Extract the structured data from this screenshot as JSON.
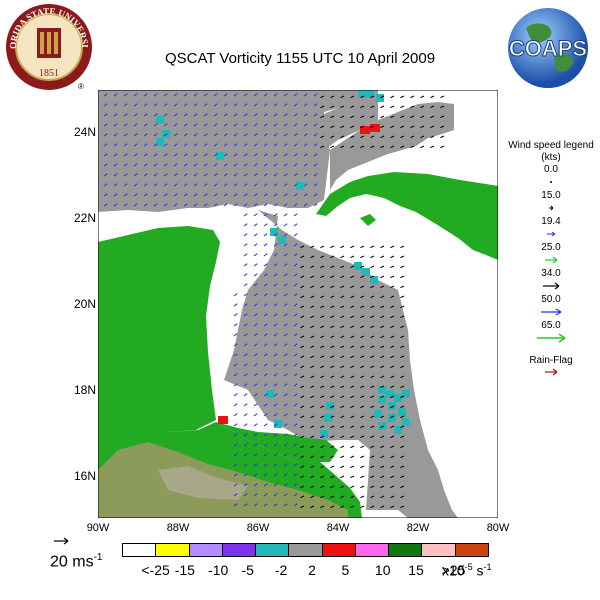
{
  "title": "QSCAT Vorticity 1155 UTC 10 April 2009",
  "logos": {
    "fsu": {
      "text": "FLORIDA STATE UNIVERSITY",
      "year": "1851",
      "mark": "®"
    },
    "coaps": {
      "text": "COAPS"
    }
  },
  "map": {
    "lat_labels": [
      "24N",
      "22N",
      "20N",
      "18N",
      "16N"
    ],
    "lon_labels": [
      "90W",
      "88W",
      "86W",
      "84W",
      "82W",
      "80W"
    ],
    "colors": {
      "land": "#22aa22",
      "land_high": "#8c9a5a",
      "ocean": "#ffffff",
      "coverage": "#999999",
      "teal": "#22b8b8",
      "red": "#ee1111"
    }
  },
  "wind_legend": {
    "title": "Wind speed legend (kts)",
    "entries": [
      {
        "value": "0.0",
        "color": "#000000"
      },
      {
        "value": "15.0",
        "color": "#000000"
      },
      {
        "value": "19.4",
        "color": "#2233ee"
      },
      {
        "value": "25.0",
        "color": "#22cc22"
      },
      {
        "value": "34.0",
        "color": "#000000"
      },
      {
        "value": "50.0",
        "color": "#2233ee"
      },
      {
        "value": "65.0",
        "color": "#22cc22"
      }
    ],
    "rain_flag": {
      "label": "Rain-Flag",
      "color": "#aa1111"
    }
  },
  "scale": {
    "value": "20 ms",
    "exp": "-1"
  },
  "colorbar": {
    "colors": [
      "#ffffff",
      "#ffff00",
      "#b58cff",
      "#8033ee",
      "#22b8b8",
      "#999999",
      "#ee1111",
      "#ff66ee",
      "#117711",
      "#ffc0c0",
      "#cc4411"
    ],
    "labels": [
      "<-25",
      "-15",
      "-10",
      "-5",
      "-2",
      "2",
      "5",
      "10",
      "15",
      ">25"
    ],
    "units": {
      "base": "x10",
      "exp1": "-5",
      "s": " s",
      "exp2": "-1"
    }
  }
}
